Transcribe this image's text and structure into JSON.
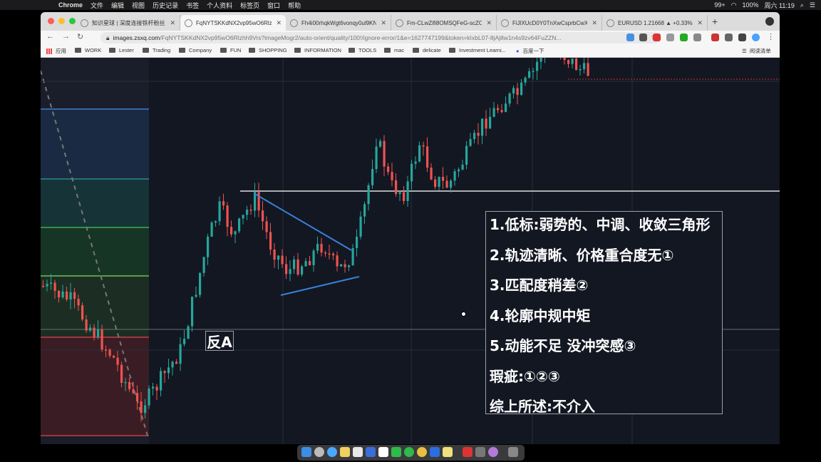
{
  "menubar": {
    "app": "Chrome",
    "items": [
      "文件",
      "编辑",
      "视图",
      "历史记录",
      "书签",
      "个人资料",
      "标签页",
      "窗口",
      "帮助"
    ],
    "battery": "100%",
    "clock": "周六 11:19",
    "badge": "99+"
  },
  "tabs": [
    {
      "label": "知识星球 | 深度连接铁杆粉丝，"
    },
    {
      "label": "FqNYTSKKdNX2vp95wO6Rlzhh"
    },
    {
      "label": "Fh4i00rhqkWgt6vonqy0ul9KN"
    },
    {
      "label": "Fm-CLwZifi8OMSQFeG-scZO/"
    },
    {
      "label": "FiJlXUcD0Y0TnXwCsprbCwXn"
    },
    {
      "label": "EURUSD 1.21668 ▲ +0.33% Z"
    }
  ],
  "address": {
    "host": "images.zsxq.com",
    "path": "/FqNYTSKKdNX2vp95wO6Rlzhh9Vrs?imageMogr2/auto-orient/quality/100!/ignore-error/1&e=1627747199&token=kIxbL07-8jAj8w1n4s9zv64FuZZN..."
  },
  "bookmarks": [
    "应用",
    "WORK",
    "Lester",
    "Trading",
    "Company",
    "FUN",
    "SHOPPING",
    "INFORMATION",
    "TOOLS",
    "mac",
    "delicate",
    "Investment Learni...",
    "百度一下"
  ],
  "reading_list": "阅读清单",
  "notes": [
    "1.低标:弱势的、中调、收敛三角形",
    "2.轨迹清晰、价格重合度无①",
    "3.匹配度稍差②",
    "4.轮廓中规中矩",
    "5.动能不足 没冲突感③",
    "瑕疵:①②③",
    "综上所述:不介入"
  ],
  "label_a": "反A",
  "colors": {
    "bg": "#131722",
    "up": "#26a69a",
    "down": "#ef5350",
    "trend": "#2962ff"
  }
}
